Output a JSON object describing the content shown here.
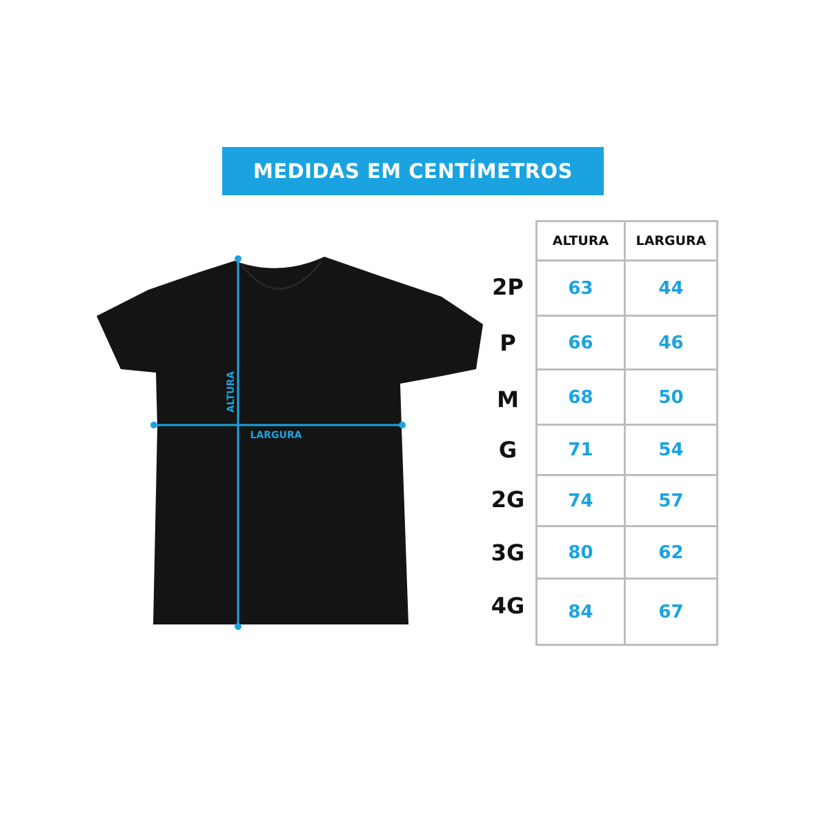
{
  "title": "MEDIDAS EM CENTÍMETROS",
  "diagram": {
    "height_label": "ALTURA",
    "width_label": "LARGURA"
  },
  "table": {
    "headers": [
      "ALTURA",
      "LARGURA"
    ],
    "rows": [
      {
        "size": "2P",
        "altura": "63",
        "largura": "44"
      },
      {
        "size": "P",
        "altura": "66",
        "largura": "46"
      },
      {
        "size": "M",
        "altura": "68",
        "largura": "50"
      },
      {
        "size": "G",
        "altura": "71",
        "largura": "54"
      },
      {
        "size": "2G",
        "altura": "74",
        "largura": "57"
      },
      {
        "size": "3G",
        "altura": "80",
        "largura": "62"
      },
      {
        "size": "4G",
        "altura": "84",
        "largura": "67"
      }
    ]
  },
  "colors": {
    "accent": "#1aa3e0",
    "shirt": "#141414",
    "grid": "#bdbdbd"
  }
}
